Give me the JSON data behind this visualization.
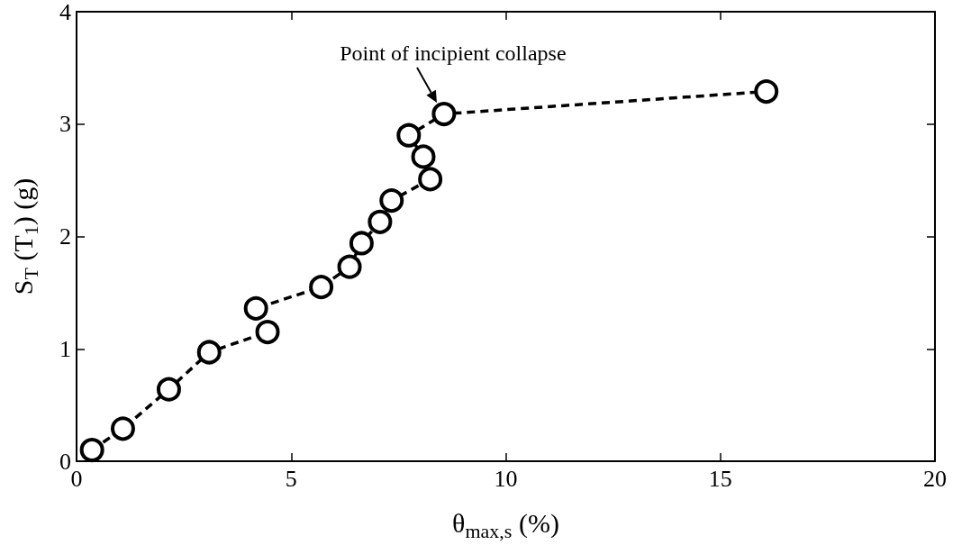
{
  "chart_data": {
    "type": "line",
    "xlabel": "θ$_{max,s}$ (%)",
    "ylabel": "S$_{T}$ (T$_{1}$) (g)",
    "annotations": [
      {
        "text": "Point of incipient collapse",
        "x": 8.56,
        "y": 3.09
      }
    ],
    "series": [
      {
        "color": "#000000",
        "x": [
          0.36,
          1.08,
          2.15,
          3.09,
          4.45,
          4.18,
          5.7,
          6.36,
          6.64,
          7.07,
          7.34,
          8.24,
          8.08,
          7.74,
          8.56,
          16.07
        ],
        "values": [
          0.1,
          0.29,
          0.64,
          0.97,
          1.15,
          1.36,
          1.55,
          1.73,
          1.94,
          2.13,
          2.32,
          2.51,
          2.71,
          2.9,
          3.09,
          3.29
        ]
      }
    ],
    "xlim": [
      0,
      20
    ],
    "xticks": [
      0,
      5,
      10,
      15,
      20
    ],
    "ylim": [
      0,
      4
    ],
    "yticks": [
      0,
      1,
      2,
      3,
      4
    ],
    "grid": false,
    "marker": "circle",
    "line_style": "dashed"
  }
}
